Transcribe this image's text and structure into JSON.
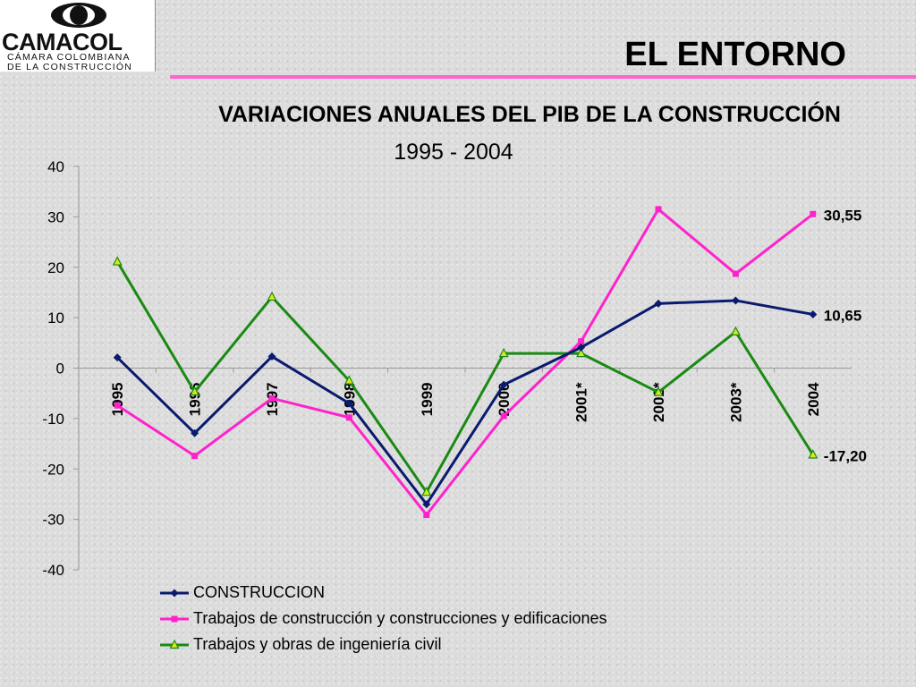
{
  "logo": {
    "wordmark": "CAMACOL",
    "line1": "CÁMARA COLOMBIANA",
    "line2": "DE LA CONSTRUCCIÓN"
  },
  "header": {
    "title": "EL ENTORNO"
  },
  "chart_data": {
    "type": "line",
    "title": "VARIACIONES ANUALES DEL PIB DE LA CONSTRUCCIÓN",
    "subtitle": "1995 - 2004",
    "categories": [
      "1995",
      "1996",
      "1997",
      "1998",
      "1999",
      "2000",
      "2001*",
      "2002*",
      "2003*",
      "2004"
    ],
    "ylim": [
      -40,
      40
    ],
    "yticks": [
      40,
      30,
      20,
      10,
      0,
      -10,
      -20,
      -30,
      -40
    ],
    "grid": false,
    "legend_position": "bottom-left",
    "series": [
      {
        "name": "CONSTRUCCION",
        "color": "#0a1a6e",
        "marker": "diamond",
        "values": [
          2.1,
          -12.9,
          2.3,
          -7.0,
          -27.0,
          -3.3,
          4.1,
          12.8,
          13.4,
          10.65
        ]
      },
      {
        "name": "Trabajos de construcción y construcciones y edificaciones",
        "color": "#ff22cc",
        "marker": "square",
        "values": [
          -7.4,
          -17.4,
          -6.0,
          -9.8,
          -29.1,
          -9.5,
          5.3,
          31.5,
          18.7,
          30.55
        ]
      },
      {
        "name": "Trabajos y obras de ingeniería civil",
        "color": "#1a8a14",
        "marker": "triangle",
        "values": [
          21.1,
          -4.7,
          14.1,
          -2.5,
          -24.6,
          2.9,
          2.9,
          -4.8,
          7.2,
          -17.2
        ]
      }
    ],
    "annotations": [
      "30,55",
      "10,65",
      "-17,20"
    ]
  }
}
